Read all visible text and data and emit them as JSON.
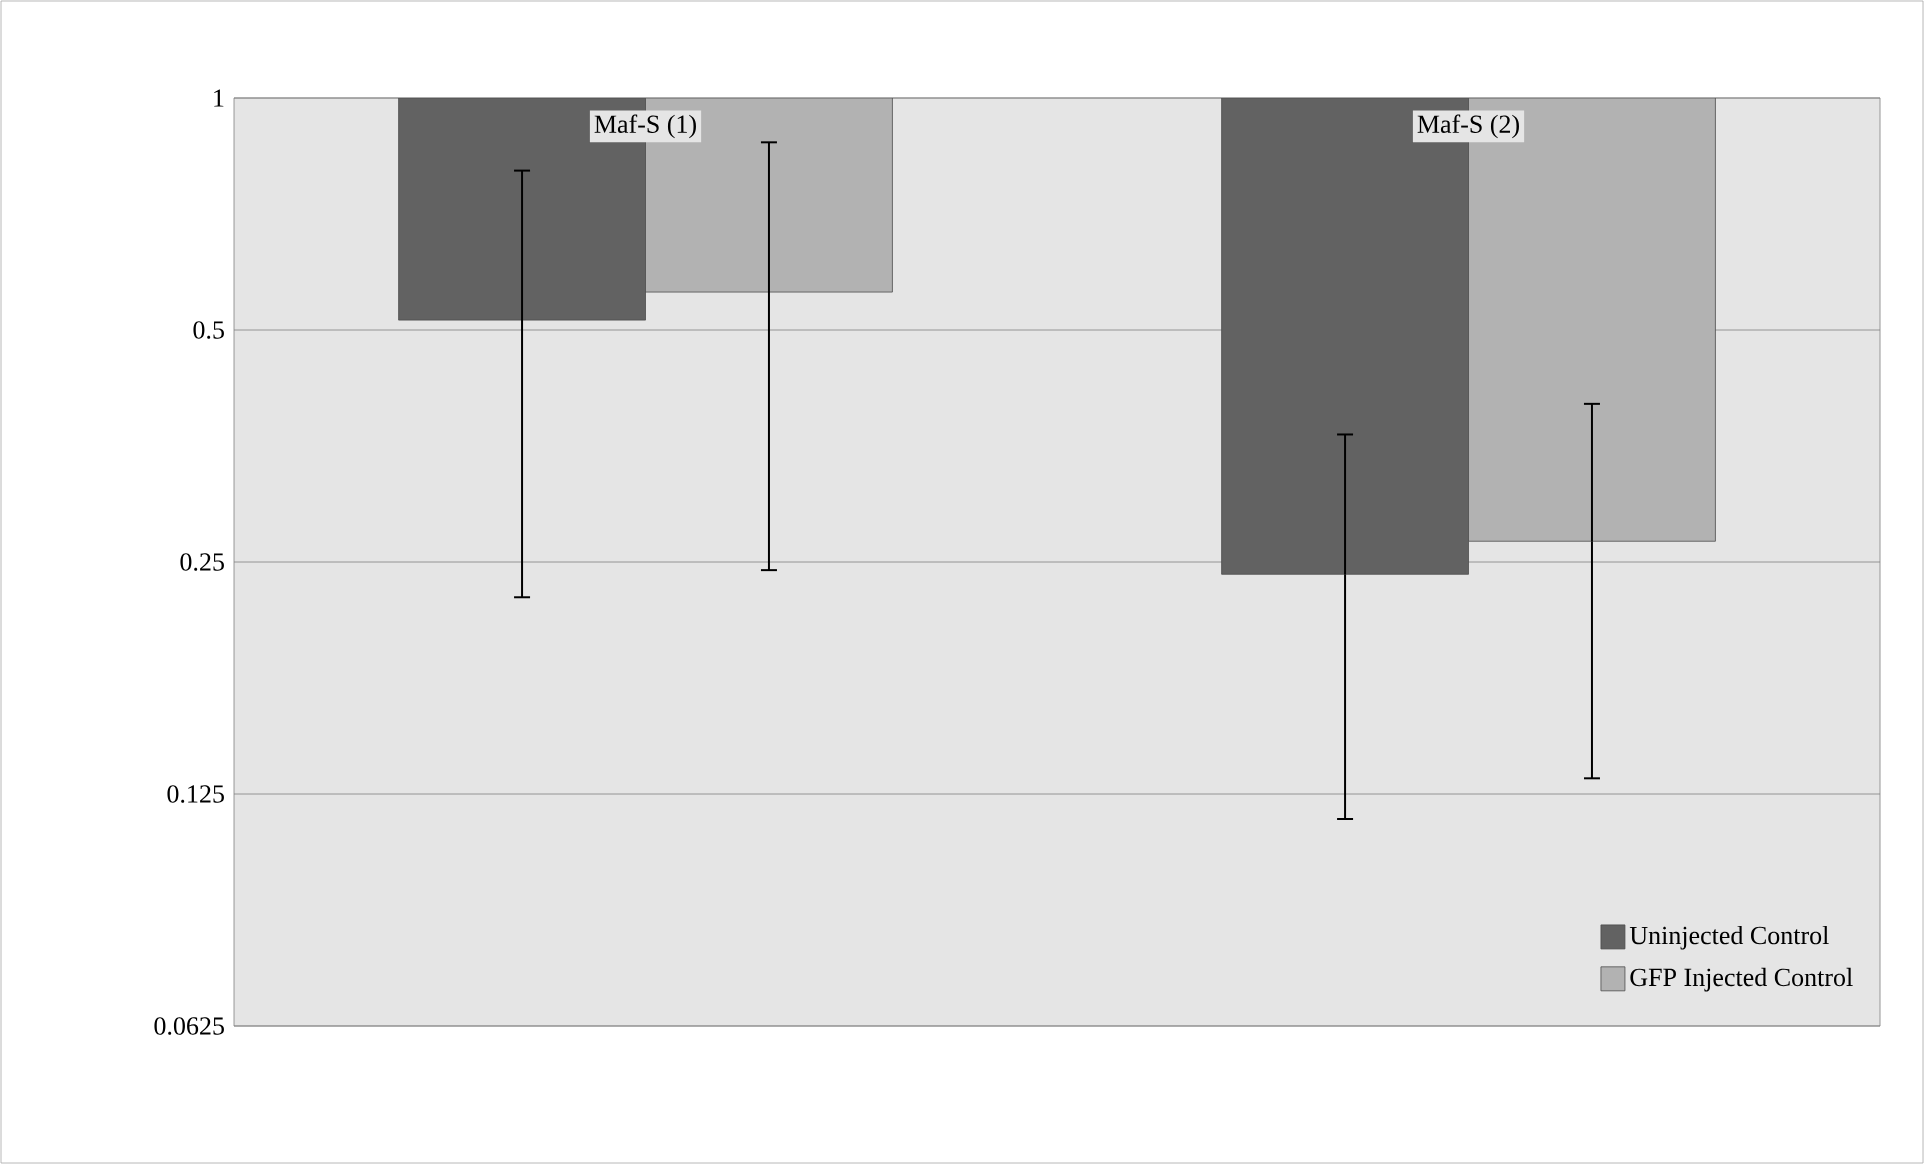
{
  "chart_data": {
    "type": "bar",
    "categories": [
      "Maf-S (1)",
      "Maf-S (2)"
    ],
    "series": [
      {
        "name": "Uninjected Control",
        "color": "#626262",
        "base": [
          1,
          1
        ],
        "values": [
          -0.485,
          -0.759
        ],
        "errors": [
          0.29,
          0.125
        ]
      },
      {
        "name": "GFP Injected Control",
        "color": "#b2b2b2",
        "base": [
          1,
          1
        ],
        "values": [
          -0.44,
          -0.734
        ],
        "errors": [
          0.316,
          0.135
        ]
      }
    ],
    "log": "y",
    "ylim": [
      0.0625,
      1
    ],
    "yticks": [
      1,
      0.5,
      0.25,
      0.125,
      0.0625
    ],
    "grid": "y",
    "legend": "bottom right"
  }
}
